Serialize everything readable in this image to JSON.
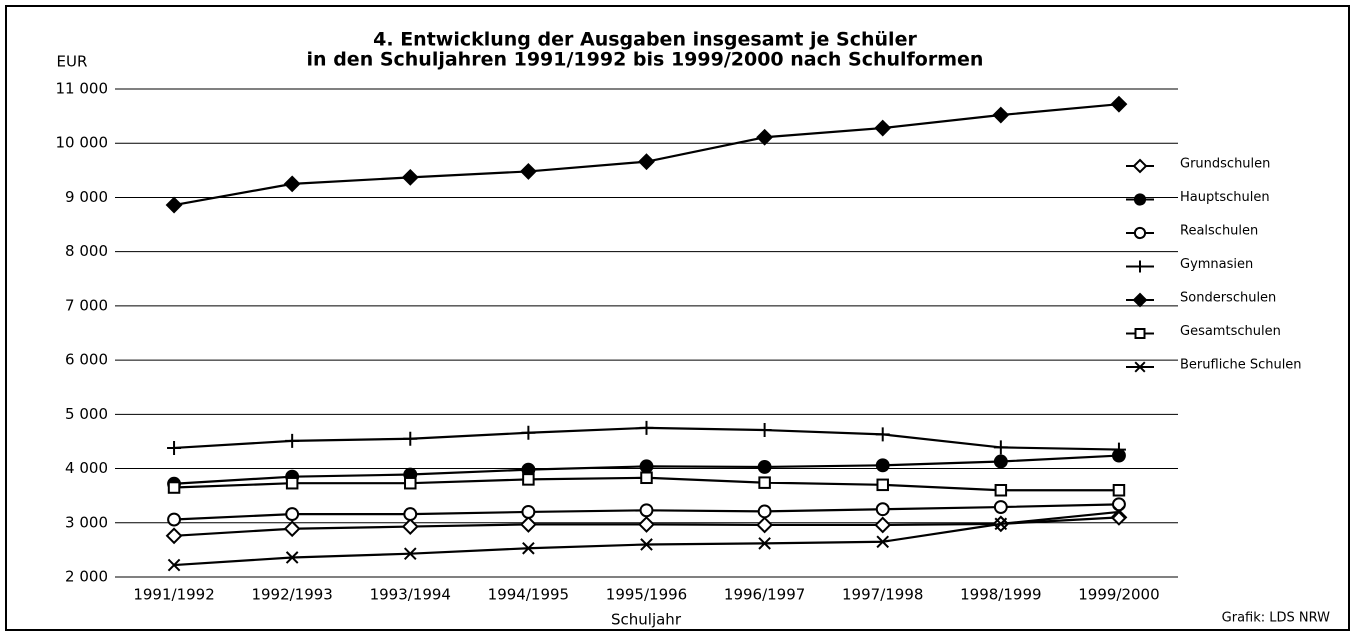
{
  "chart_data": {
    "type": "line",
    "title": [
      "4. Entwicklung der Ausgaben insgesamt je Schüler",
      "in den Schuljahren 1991/1992 bis 1999/2000 nach Schulformen"
    ],
    "y_label": "EUR",
    "x_label": "Schuljahr",
    "source": "Grafik: LDS NRW",
    "categories": [
      "1991/1992",
      "1992/1993",
      "1993/1994",
      "1994/1995",
      "1995/1996",
      "1996/1997",
      "1997/1998",
      "1998/1999",
      "1999/2000"
    ],
    "ylim": [
      2000,
      11000
    ],
    "yticks": [
      {
        "value": 2000,
        "label": "2 000"
      },
      {
        "value": 3000,
        "label": "3 000"
      },
      {
        "value": 4000,
        "label": "4 000"
      },
      {
        "value": 5000,
        "label": "5 000"
      },
      {
        "value": 6000,
        "label": "6 000"
      },
      {
        "value": 7000,
        "label": "7 000"
      },
      {
        "value": 8000,
        "label": "8 000"
      },
      {
        "value": 9000,
        "label": "9 000"
      },
      {
        "value": 10000,
        "label": "10 000"
      },
      {
        "value": 11000,
        "label": "11 000"
      }
    ],
    "grid": true,
    "legend": "right",
    "series": [
      {
        "name": "Grundschulen",
        "color": "#000000",
        "marker": "diamond-open",
        "values": [
          2760,
          2890,
          2930,
          2970,
          2970,
          2960,
          2960,
          2980,
          3100
        ]
      },
      {
        "name": "Hauptschulen",
        "color": "#000000",
        "marker": "circle-filled",
        "values": [
          3720,
          3850,
          3890,
          3980,
          4040,
          4030,
          4060,
          4130,
          4240
        ]
      },
      {
        "name": "Realschulen",
        "color": "#000000",
        "marker": "circle-open",
        "values": [
          3060,
          3160,
          3160,
          3200,
          3230,
          3210,
          3250,
          3290,
          3340
        ]
      },
      {
        "name": "Gymnasien",
        "color": "#000000",
        "marker": "plus",
        "values": [
          4380,
          4510,
          4550,
          4660,
          4750,
          4710,
          4630,
          4390,
          4350
        ]
      },
      {
        "name": "Sonderschulen",
        "color": "#000000",
        "marker": "diamond-filled",
        "values": [
          8860,
          9250,
          9370,
          9480,
          9660,
          10110,
          10280,
          10520,
          10720
        ]
      },
      {
        "name": "Gesamtschulen",
        "color": "#000000",
        "marker": "square-open",
        "values": [
          3650,
          3730,
          3730,
          3800,
          3830,
          3740,
          3700,
          3600,
          3600
        ]
      },
      {
        "name": "Berufliche Schulen",
        "color": "#000000",
        "marker": "x",
        "values": [
          2220,
          2360,
          2430,
          2530,
          2600,
          2620,
          2650,
          2980,
          3200
        ]
      }
    ]
  }
}
